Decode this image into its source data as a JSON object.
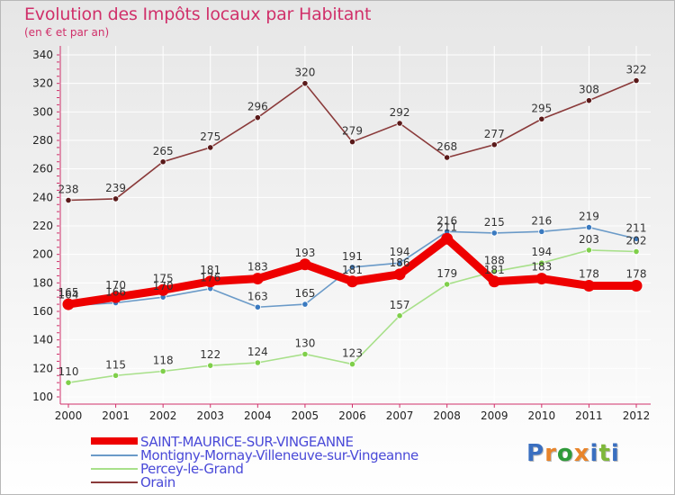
{
  "header": {
    "title": "Evolution des Impôts locaux par Habitant",
    "subtitle": "(en € et par an)"
  },
  "brand": {
    "text": "Proxiti",
    "letter_colors": [
      "#3a6fc0",
      "#e8842a",
      "#2f9a3a",
      "#e8842a",
      "#3a6fc0",
      "#7fb83a",
      "#3a6fc0"
    ]
  },
  "colors": {
    "title": "#d0306a",
    "axis": "#d0306a",
    "grid": "#ffffff",
    "tick_label": "#222222"
  },
  "chart_data": {
    "type": "line",
    "title": "Evolution des Impôts locaux par Habitant",
    "subtitle": "(en € et par an)",
    "xlabel": "",
    "ylabel": "",
    "x": [
      2000,
      2001,
      2002,
      2003,
      2004,
      2005,
      2006,
      2007,
      2008,
      2009,
      2010,
      2011,
      2012
    ],
    "ylim": [
      100,
      340
    ],
    "yticks": [
      100,
      120,
      140,
      160,
      180,
      200,
      220,
      240,
      260,
      280,
      300,
      320,
      340
    ],
    "grid": true,
    "legend_position": "bottom-left",
    "series": [
      {
        "name": "SAINT-MAURICE-SUR-VINGEANNE",
        "color": "#ee0000",
        "emphasis": true,
        "values": [
          165,
          170,
          175,
          181,
          183,
          193,
          181,
          186,
          211,
          181,
          183,
          178,
          178
        ]
      },
      {
        "name": "Montigny-Mornay-Villeneuve-sur-Vingeanne",
        "color": "#6a9ac8",
        "marker": "#3a7ac0",
        "values": [
          164,
          166,
          170,
          176,
          163,
          165,
          191,
          194,
          216,
          215,
          216,
          219,
          211
        ]
      },
      {
        "name": "Percey-le-Grand",
        "color": "#a8e08a",
        "marker": "#7fcf4a",
        "values": [
          110,
          115,
          118,
          122,
          124,
          130,
          123,
          157,
          179,
          188,
          194,
          203,
          202
        ]
      },
      {
        "name": "Orain",
        "color": "#8a3a3a",
        "marker": "#5a1a1a",
        "values": [
          238,
          239,
          265,
          275,
          296,
          320,
          279,
          292,
          268,
          277,
          295,
          308,
          322
        ]
      }
    ]
  }
}
